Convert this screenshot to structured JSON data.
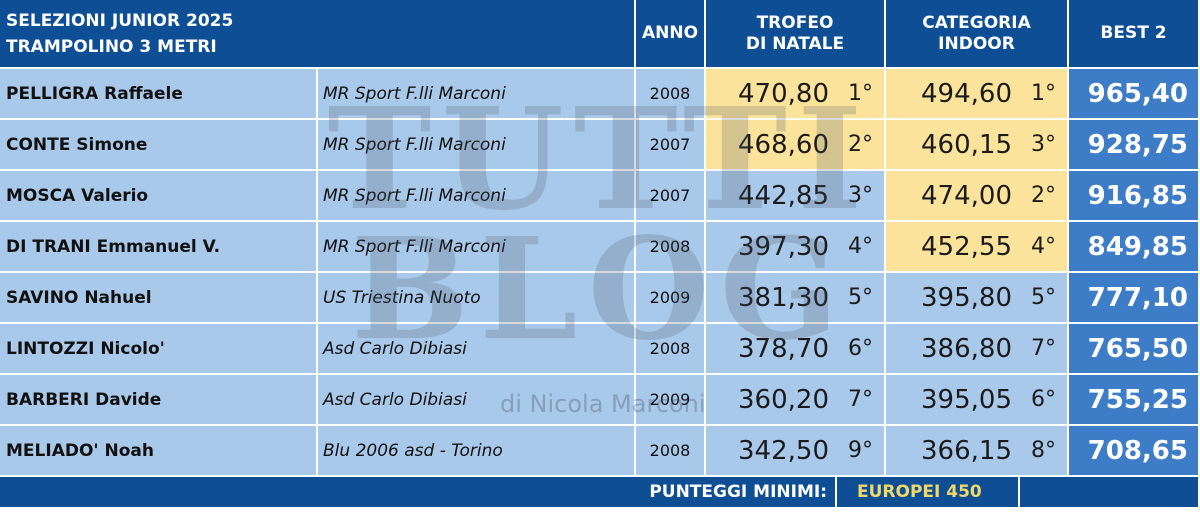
{
  "header": {
    "title_line1": "SELEZIONI JUNIOR 2025",
    "title_line2": "TRAMPOLINO 3 METRI",
    "col_anno": "ANNO",
    "col_trofeo_1": "TROFEO",
    "col_trofeo_2": "DI NATALE",
    "col_indoor_1": "CATEGORIA",
    "col_indoor_2": "INDOOR",
    "col_best": "BEST 2"
  },
  "rows": [
    {
      "name": "PELLIGRA Raffaele",
      "club": "MR Sport F.lli Marconi",
      "anno": "2008",
      "trofeo": "470,80",
      "trofeo_pos": "1°",
      "indoor": "494,60",
      "indoor_pos": "1°",
      "best": "965,40",
      "trofeo_hl": true,
      "indoor_hl": true
    },
    {
      "name": "CONTE Simone",
      "club": "MR Sport F.lli Marconi",
      "anno": "2007",
      "trofeo": "468,60",
      "trofeo_pos": "2°",
      "indoor": "460,15",
      "indoor_pos": "3°",
      "best": "928,75",
      "trofeo_hl": true,
      "indoor_hl": true
    },
    {
      "name": "MOSCA Valerio",
      "club": "MR Sport F.lli Marconi",
      "anno": "2007",
      "trofeo": "442,85",
      "trofeo_pos": "3°",
      "indoor": "474,00",
      "indoor_pos": "2°",
      "best": "916,85",
      "trofeo_hl": false,
      "indoor_hl": true
    },
    {
      "name": "DI TRANI Emmanuel V.",
      "club": "MR Sport F.lli Marconi",
      "anno": "2008",
      "trofeo": "397,30",
      "trofeo_pos": "4°",
      "indoor": "452,55",
      "indoor_pos": "4°",
      "best": "849,85",
      "trofeo_hl": false,
      "indoor_hl": true
    },
    {
      "name": "SAVINO Nahuel",
      "club": "US Triestina Nuoto",
      "anno": "2009",
      "trofeo": "381,30",
      "trofeo_pos": "5°",
      "indoor": "395,80",
      "indoor_pos": "5°",
      "best": "777,10",
      "trofeo_hl": false,
      "indoor_hl": false
    },
    {
      "name": "LINTOZZI Nicolo'",
      "club": "Asd Carlo Dibiasi",
      "anno": "2008",
      "trofeo": "378,70",
      "trofeo_pos": "6°",
      "indoor": "386,80",
      "indoor_pos": "7°",
      "best": "765,50",
      "trofeo_hl": false,
      "indoor_hl": false
    },
    {
      "name": "BARBERI Davide",
      "club": "Asd Carlo Dibiasi",
      "anno": "2009",
      "trofeo": "360,20",
      "trofeo_pos": "7°",
      "indoor": "395,05",
      "indoor_pos": "6°",
      "best": "755,25",
      "trofeo_hl": false,
      "indoor_hl": false
    },
    {
      "name": "MELIADO' Noah",
      "club": "Blu 2006 asd - Torino",
      "anno": "2008",
      "trofeo": "342,50",
      "trofeo_pos": "9°",
      "indoor": "366,15",
      "indoor_pos": "8°",
      "best": "708,65",
      "trofeo_hl": false,
      "indoor_hl": false
    }
  ],
  "footer": {
    "label": "PUNTEGGI MINIMI:",
    "value": "EUROPEI 450"
  },
  "watermark": {
    "big": "TUTTI BLOG",
    "sub": "di Nicola Marconi"
  },
  "colors": {
    "header_bg": "#0d4e94",
    "row_bg": "#a9c9ea",
    "highlight_yellow": "#fce39c",
    "best_bg": "#3d7cc6",
    "footer_value": "#f2d76b"
  }
}
